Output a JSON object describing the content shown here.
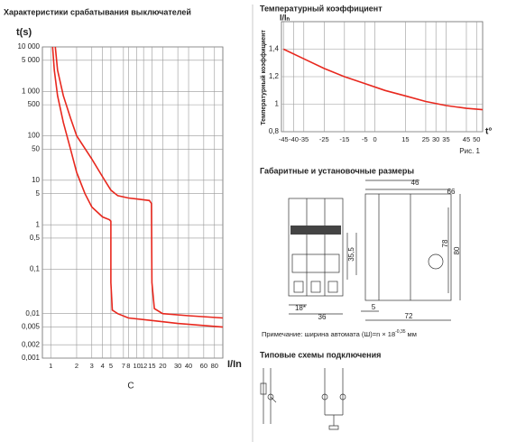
{
  "chart_data": [
    {
      "type": "line",
      "title": "Характеристики срабатывания выключателей",
      "y_label": "t(s)",
      "x_label": "I/In",
      "curve_label": "C",
      "xlog": true,
      "ylog": true,
      "grid": true,
      "xlim": [
        0.8,
        100
      ],
      "ylim": [
        0.001,
        10000
      ],
      "xticks": [
        1,
        2,
        3,
        4,
        5,
        7,
        8,
        10,
        12,
        15,
        20,
        30,
        40,
        60,
        80
      ],
      "yticks": [
        {
          "value": 10000,
          "label": "10 000"
        },
        {
          "value": 5000,
          "label": "5 000"
        },
        {
          "value": 1000,
          "label": "1 000"
        },
        500,
        100,
        50,
        10,
        5,
        1,
        {
          "value": 0.5,
          "label": "0,5"
        },
        {
          "value": 0.1,
          "label": "0,1"
        },
        {
          "value": 0.01,
          "label": "0,01"
        },
        {
          "value": 0.005,
          "label": "0,005"
        },
        {
          "value": 0.002,
          "label": "0,002"
        },
        {
          "value": 0.001,
          "label": "0,001"
        }
      ],
      "series": [
        {
          "color": "#e8281e",
          "x": [
            1.05,
            1.1,
            1.2,
            1.4,
            1.7,
            2,
            2.5,
            3,
            4,
            4.8,
            5,
            5,
            5.2,
            6,
            8,
            15,
            30,
            100
          ],
          "values": [
            10000,
            3000,
            800,
            200,
            50,
            15,
            5,
            2.5,
            1.5,
            1.3,
            1.2,
            0.05,
            0.012,
            0.01,
            0.008,
            0.007,
            0.006,
            0.005
          ]
        },
        {
          "color": "#e8281e",
          "x": [
            1.13,
            1.2,
            1.4,
            1.7,
            2,
            3,
            4,
            5,
            6,
            8,
            10,
            14,
            14.8,
            15,
            16,
            20,
            40,
            100
          ],
          "values": [
            10000,
            3000,
            800,
            250,
            100,
            30,
            12,
            6,
            4.5,
            4,
            3.8,
            3.5,
            3,
            0.05,
            0.013,
            0.01,
            0.009,
            0.008
          ]
        }
      ]
    },
    {
      "type": "line",
      "title": "Температурный коэффициент",
      "y_label": "I/Iₙ",
      "y_axis_title": "Температурный коэффициент",
      "x_label": "t°",
      "caption": "Рис. 1",
      "grid": true,
      "xlim": [
        -46,
        53
      ],
      "ylim": [
        0.8,
        1.6
      ],
      "xticks": [
        -45,
        -40,
        -35,
        -25,
        -15,
        -5,
        0,
        15,
        25,
        30,
        35,
        45,
        50
      ],
      "yticks": [
        {
          "value": 0.8,
          "label": "0,8"
        },
        1,
        {
          "value": 1.2,
          "label": "1,2"
        },
        {
          "value": 1.4,
          "label": "1,4"
        }
      ],
      "series": [
        {
          "color": "#e8281e",
          "x": [
            -45,
            -35,
            -25,
            -15,
            -5,
            5,
            15,
            25,
            35,
            45,
            53
          ],
          "values": [
            1.4,
            1.33,
            1.26,
            1.2,
            1.15,
            1.1,
            1.06,
            1.02,
            0.99,
            0.97,
            0.96
          ]
        }
      ]
    }
  ],
  "dimensions": {
    "title": "Габаритные и установочные размеры",
    "d46": "46",
    "d66": "66",
    "d78": "78",
    "d80": "80",
    "d35": "35,5",
    "d18": "18*",
    "d36": "36",
    "d5": "5",
    "d72": "72",
    "note": "Примечание: ширина автомата (Ш)=n × 18",
    "note_sup": "-0,35",
    "note_unit": "мм"
  },
  "schemes": {
    "title": "Типовые схемы подключения"
  }
}
